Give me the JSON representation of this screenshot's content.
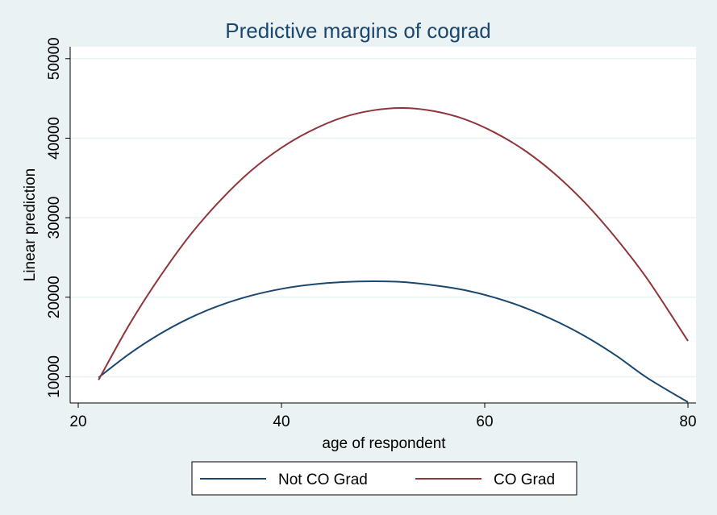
{
  "chart_data": {
    "type": "line",
    "title": "Predictive margins of cograd",
    "xlabel": "age of respondent",
    "ylabel": "Linear prediction",
    "xlim": [
      20,
      80
    ],
    "ylim": [
      6700,
      51500
    ],
    "xticks": [
      20,
      40,
      60,
      80
    ],
    "yticks": [
      10000,
      20000,
      30000,
      40000,
      50000
    ],
    "grid": true,
    "legend_position": "bottom",
    "x": [
      22,
      25,
      28,
      31,
      34,
      37,
      40,
      43,
      46,
      49,
      52,
      55,
      58,
      61,
      64,
      67,
      70,
      73,
      76,
      80
    ],
    "series": [
      {
        "name": "Not CO Grad",
        "color": "#1a476f",
        "values": [
          9900,
          12850,
          15350,
          17400,
          19000,
          20200,
          21050,
          21600,
          21900,
          22000,
          21900,
          21500,
          20900,
          19950,
          18650,
          17000,
          15000,
          12600,
          9850,
          6800
        ]
      },
      {
        "name": "CO Grad",
        "color": "#90353b",
        "values": [
          9600,
          16500,
          22500,
          27800,
          32200,
          35900,
          38800,
          41000,
          42600,
          43500,
          43800,
          43400,
          42400,
          40700,
          38400,
          35400,
          31700,
          27300,
          22300,
          14500
        ]
      }
    ]
  }
}
